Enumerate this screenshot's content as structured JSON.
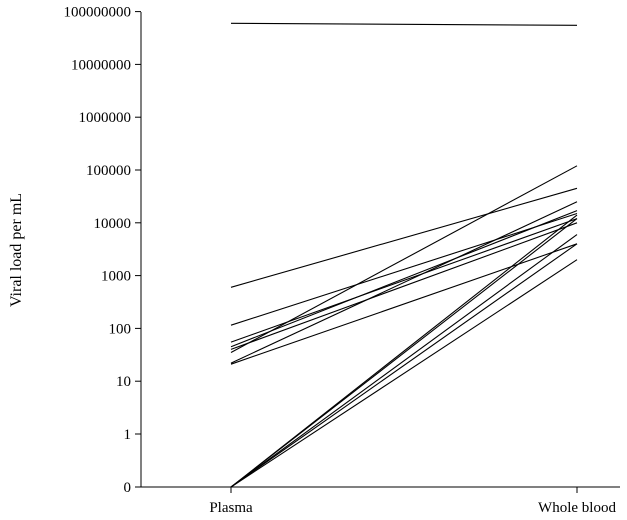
{
  "chart_data": {
    "type": "line",
    "title": "",
    "xlabel": "",
    "ylabel": "Viral load per mL",
    "yscale": "log",
    "grid": false,
    "categories": [
      "Plasma",
      "Whole blood"
    ],
    "y_ticks": [
      "0",
      "1",
      "10",
      "100",
      "1000",
      "10000",
      "100000",
      "1000000",
      "10000000",
      "100000000"
    ],
    "series": [
      {
        "values": [
          60000000,
          55000000
        ]
      },
      {
        "values": [
          600,
          45000
        ]
      },
      {
        "values": [
          115,
          15000
        ]
      },
      {
        "values": [
          55,
          12000
        ]
      },
      {
        "values": [
          45,
          17000
        ]
      },
      {
        "values": [
          40,
          10000
        ]
      },
      {
        "values": [
          35,
          120000
        ]
      },
      {
        "values": [
          22,
          25000
        ]
      },
      {
        "values": [
          21,
          4000
        ]
      },
      {
        "values": [
          0,
          14000
        ]
      },
      {
        "values": [
          0,
          12000
        ]
      },
      {
        "values": [
          0,
          6000
        ]
      },
      {
        "values": [
          0,
          4000
        ]
      },
      {
        "values": [
          0,
          2000
        ]
      }
    ]
  }
}
